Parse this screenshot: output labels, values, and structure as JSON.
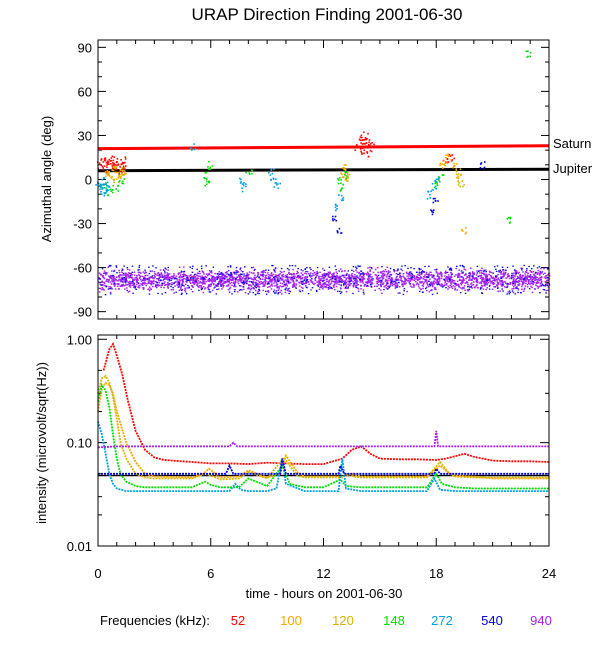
{
  "chart_data": [
    {
      "type": "scatter",
      "title": "URAP Direction Finding  2001-06-30",
      "ylabel": "Azimuthal angle (deg)",
      "ylim": [
        -95,
        95
      ],
      "xlim": [
        0,
        24
      ],
      "yticks": [
        90,
        60,
        30,
        0,
        -30,
        -60,
        -90
      ],
      "reference_lines": [
        {
          "name": "Saturn",
          "color": "#ff0000",
          "x": [
            0,
            24
          ],
          "y": [
            21,
            23
          ]
        },
        {
          "name": "Jupiter",
          "color": "#000000",
          "x": [
            0,
            24
          ],
          "y": [
            6,
            7
          ]
        }
      ],
      "series": [
        {
          "name": "52",
          "color": "#ff0000",
          "x": [
            0.1,
            0.2,
            0.3,
            0.4,
            0.5,
            0.6,
            0.7,
            0.8,
            0.9,
            1.0,
            1.1,
            1.2,
            1.3,
            1.4,
            13.8,
            13.9,
            14.0,
            14.1,
            14.2,
            14.3,
            14.4,
            14.5,
            18.5,
            18.8
          ],
          "y": [
            10,
            12,
            8,
            13,
            6,
            11,
            14,
            9,
            10,
            7,
            12,
            8,
            13,
            10,
            22,
            28,
            20,
            26,
            30,
            24,
            18,
            25,
            12,
            15
          ]
        },
        {
          "name": "100",
          "color": "#ffa500",
          "x": [
            0.5,
            0.8,
            1.1,
            1.3,
            13.0,
            13.1,
            18.3,
            18.6,
            19.0,
            19.2,
            19.4
          ],
          "y": [
            4,
            8,
            2,
            6,
            3,
            8,
            12,
            16,
            10,
            2,
            -35
          ]
        },
        {
          "name": "120",
          "color": "#d4b400",
          "x": [
            0.4,
            0.7,
            1.0,
            1.2,
            1.4,
            13.1,
            13.3,
            18.4,
            19.1,
            19.3
          ],
          "y": [
            5,
            0,
            8,
            3,
            6,
            5,
            2,
            10,
            6,
            -2
          ]
        },
        {
          "name": "148",
          "color": "#00dd00",
          "x": [
            0.3,
            0.6,
            0.9,
            1.2,
            5.6,
            5.8,
            5.9,
            8.0,
            12.8,
            13.0,
            13.2,
            18.0,
            18.2,
            21.8,
            22.9
          ],
          "y": [
            -3,
            -8,
            -5,
            0,
            3,
            -2,
            10,
            5,
            0,
            -5,
            3,
            -3,
            2,
            -28,
            86
          ]
        },
        {
          "name": "272",
          "color": "#00a0e0",
          "x": [
            0.0,
            0.1,
            0.2,
            0.3,
            0.4,
            0.5,
            5.0,
            7.6,
            7.7,
            9.2,
            9.3,
            9.5,
            12.7,
            12.9,
            17.6,
            17.8,
            18.0
          ],
          "y": [
            -5,
            -2,
            -8,
            -1,
            -6,
            -4,
            22,
            0,
            -5,
            5,
            0,
            -3,
            -18,
            -12,
            -10,
            -5,
            0
          ]
        },
        {
          "name": "540",
          "color": "#0000e0",
          "x": [
            12.6,
            12.8,
            17.7,
            17.9,
            20.4
          ],
          "y": [
            -25,
            -35,
            -22,
            -15,
            10
          ]
        },
        {
          "name": "940",
          "color": "#a020f0",
          "x": [
            0,
            24
          ],
          "y": [
            -78,
            -58
          ]
        }
      ]
    },
    {
      "type": "line",
      "ylabel": "intensity (microvolt/sqrt(Hz))",
      "xlabel": "time - hours on 2001-06-30",
      "yscale": "log",
      "ylim": [
        0.01,
        1.1
      ],
      "xlim": [
        0,
        24
      ],
      "xticks": [
        0,
        6,
        12,
        18,
        24
      ],
      "xtick_labels": [
        "0",
        "6",
        "12",
        "18",
        "24"
      ],
      "yticks": [
        1.0,
        0.1,
        0.01
      ],
      "ytick_labels": [
        "1.00",
        "0.10",
        "0.01"
      ],
      "reference_line": {
        "color": "#000000",
        "y": 0.048
      },
      "series": [
        {
          "name": "52",
          "color": "#ff0000",
          "x": [
            0.3,
            0.6,
            0.8,
            1.0,
            1.3,
            1.6,
            2.0,
            2.5,
            3.0,
            3.5,
            5.0,
            6.0,
            7.0,
            8.0,
            9.0,
            10.0,
            11.0,
            12.0,
            13.0,
            13.5,
            14.0,
            14.5,
            15.0,
            16.0,
            17.0,
            18.0,
            18.5,
            19.0,
            19.5,
            20.0,
            21.0,
            22.0,
            23.0,
            24.0
          ],
          "y": [
            0.5,
            0.8,
            0.9,
            0.7,
            0.45,
            0.25,
            0.13,
            0.085,
            0.072,
            0.068,
            0.065,
            0.063,
            0.063,
            0.062,
            0.064,
            0.063,
            0.062,
            0.062,
            0.07,
            0.085,
            0.092,
            0.078,
            0.07,
            0.069,
            0.069,
            0.068,
            0.07,
            0.074,
            0.078,
            0.073,
            0.067,
            0.066,
            0.066,
            0.065
          ]
        },
        {
          "name": "100",
          "color": "#ffa500",
          "x": [
            0.0,
            0.2,
            0.4,
            0.6,
            0.8,
            1.0,
            1.5,
            2.0,
            2.5,
            3.0,
            5.0,
            5.6,
            5.9,
            6.5,
            7.5,
            8.0,
            9.0,
            9.7,
            10.0,
            10.6,
            11.0,
            12.0,
            13.0,
            13.5,
            14.0,
            17.5,
            18.2,
            18.6,
            19.0,
            20.0,
            21.0,
            22.0,
            24.0
          ],
          "y": [
            0.2,
            0.33,
            0.38,
            0.36,
            0.3,
            0.2,
            0.1,
            0.065,
            0.05,
            0.047,
            0.046,
            0.05,
            0.056,
            0.046,
            0.047,
            0.054,
            0.046,
            0.05,
            0.075,
            0.052,
            0.047,
            0.047,
            0.047,
            0.05,
            0.047,
            0.047,
            0.06,
            0.052,
            0.048,
            0.047,
            0.045,
            0.045,
            0.045
          ]
        },
        {
          "name": "120",
          "color": "#d4b400",
          "x": [
            0.0,
            0.2,
            0.4,
            0.6,
            0.8,
            1.0,
            1.2,
            1.5,
            2.0,
            2.5,
            3.0,
            5.0,
            5.7,
            6.0,
            6.5,
            7.5,
            8.0,
            9.0,
            9.9,
            10.2,
            10.6,
            11.0,
            12.0,
            13.0,
            13.3,
            13.6,
            14.0,
            17.5,
            18.2,
            18.7,
            19.0,
            20.0,
            22.0,
            24.0
          ],
          "y": [
            0.3,
            0.42,
            0.44,
            0.38,
            0.28,
            0.17,
            0.1,
            0.07,
            0.05,
            0.046,
            0.045,
            0.045,
            0.05,
            0.048,
            0.044,
            0.045,
            0.052,
            0.045,
            0.072,
            0.06,
            0.048,
            0.046,
            0.046,
            0.046,
            0.05,
            0.047,
            0.046,
            0.046,
            0.065,
            0.05,
            0.047,
            0.046,
            0.046,
            0.046
          ]
        },
        {
          "name": "148",
          "color": "#00dd00",
          "x": [
            0.0,
            0.2,
            0.4,
            0.6,
            0.8,
            1.0,
            1.2,
            1.5,
            2.0,
            2.5,
            3.0,
            5.0,
            5.7,
            6.0,
            6.5,
            7.5,
            8.0,
            9.0,
            9.8,
            10.2,
            11.0,
            12.0,
            12.9,
            13.2,
            14.0,
            17.5,
            18.0,
            18.3,
            19.0,
            20.0,
            24.0
          ],
          "y": [
            0.25,
            0.36,
            0.32,
            0.22,
            0.12,
            0.07,
            0.05,
            0.042,
            0.038,
            0.037,
            0.037,
            0.037,
            0.042,
            0.039,
            0.037,
            0.037,
            0.045,
            0.038,
            0.06,
            0.04,
            0.037,
            0.037,
            0.044,
            0.038,
            0.037,
            0.037,
            0.05,
            0.04,
            0.037,
            0.036,
            0.036
          ]
        },
        {
          "name": "272",
          "color": "#00a0e0",
          "x": [
            0.0,
            0.2,
            0.4,
            0.6,
            0.8,
            1.0,
            1.5,
            2.0,
            3.0,
            5.0,
            6.0,
            7.0,
            7.3,
            7.6,
            8.0,
            9.0,
            9.5,
            9.8,
            10.0,
            11.0,
            12.0,
            12.8,
            13.0,
            13.2,
            14.0,
            17.5,
            17.9,
            18.2,
            19.0,
            24.0
          ],
          "y": [
            0.16,
            0.12,
            0.08,
            0.05,
            0.04,
            0.036,
            0.034,
            0.034,
            0.034,
            0.034,
            0.034,
            0.034,
            0.04,
            0.035,
            0.034,
            0.034,
            0.036,
            0.07,
            0.04,
            0.034,
            0.034,
            0.034,
            0.07,
            0.036,
            0.034,
            0.034,
            0.045,
            0.035,
            0.034,
            0.034
          ]
        },
        {
          "name": "540",
          "color": "#0000e0",
          "x": [
            0.0,
            1.0,
            2.0,
            3.0,
            4.0,
            5.0,
            6.0,
            6.8,
            7.0,
            7.2,
            8.0,
            9.0,
            9.7,
            9.8,
            10.0,
            11.0,
            12.0,
            12.8,
            12.9,
            13.1,
            14.0,
            16.0,
            17.9,
            18.0,
            18.2,
            20.0,
            22.0,
            24.0
          ],
          "y": [
            0.05,
            0.05,
            0.05,
            0.05,
            0.05,
            0.05,
            0.05,
            0.05,
            0.06,
            0.05,
            0.05,
            0.05,
            0.05,
            0.07,
            0.05,
            0.05,
            0.05,
            0.05,
            0.06,
            0.05,
            0.05,
            0.05,
            0.05,
            0.056,
            0.05,
            0.05,
            0.05,
            0.05
          ]
        },
        {
          "name": "940",
          "color": "#a020f0",
          "x": [
            0.0,
            1.0,
            2.0,
            4.0,
            6.0,
            7.0,
            7.2,
            7.4,
            8.0,
            10.0,
            12.0,
            14.0,
            16.0,
            17.9,
            18.0,
            18.1,
            20.0,
            22.0,
            24.0
          ],
          "y": [
            0.09,
            0.092,
            0.092,
            0.092,
            0.092,
            0.092,
            0.1,
            0.092,
            0.092,
            0.092,
            0.092,
            0.092,
            0.092,
            0.092,
            0.13,
            0.092,
            0.092,
            0.092,
            0.092
          ]
        }
      ]
    }
  ],
  "legend": {
    "label": "Frequencies (kHz):",
    "items": [
      {
        "name": "52",
        "color": "#ff0000"
      },
      {
        "name": "100",
        "color": "#ffa500"
      },
      {
        "name": "120",
        "color": "#d4b400"
      },
      {
        "name": "148",
        "color": "#00dd00"
      },
      {
        "name": "272",
        "color": "#00a0e0"
      },
      {
        "name": "540",
        "color": "#0000e0"
      },
      {
        "name": "940",
        "color": "#a020f0"
      }
    ]
  }
}
